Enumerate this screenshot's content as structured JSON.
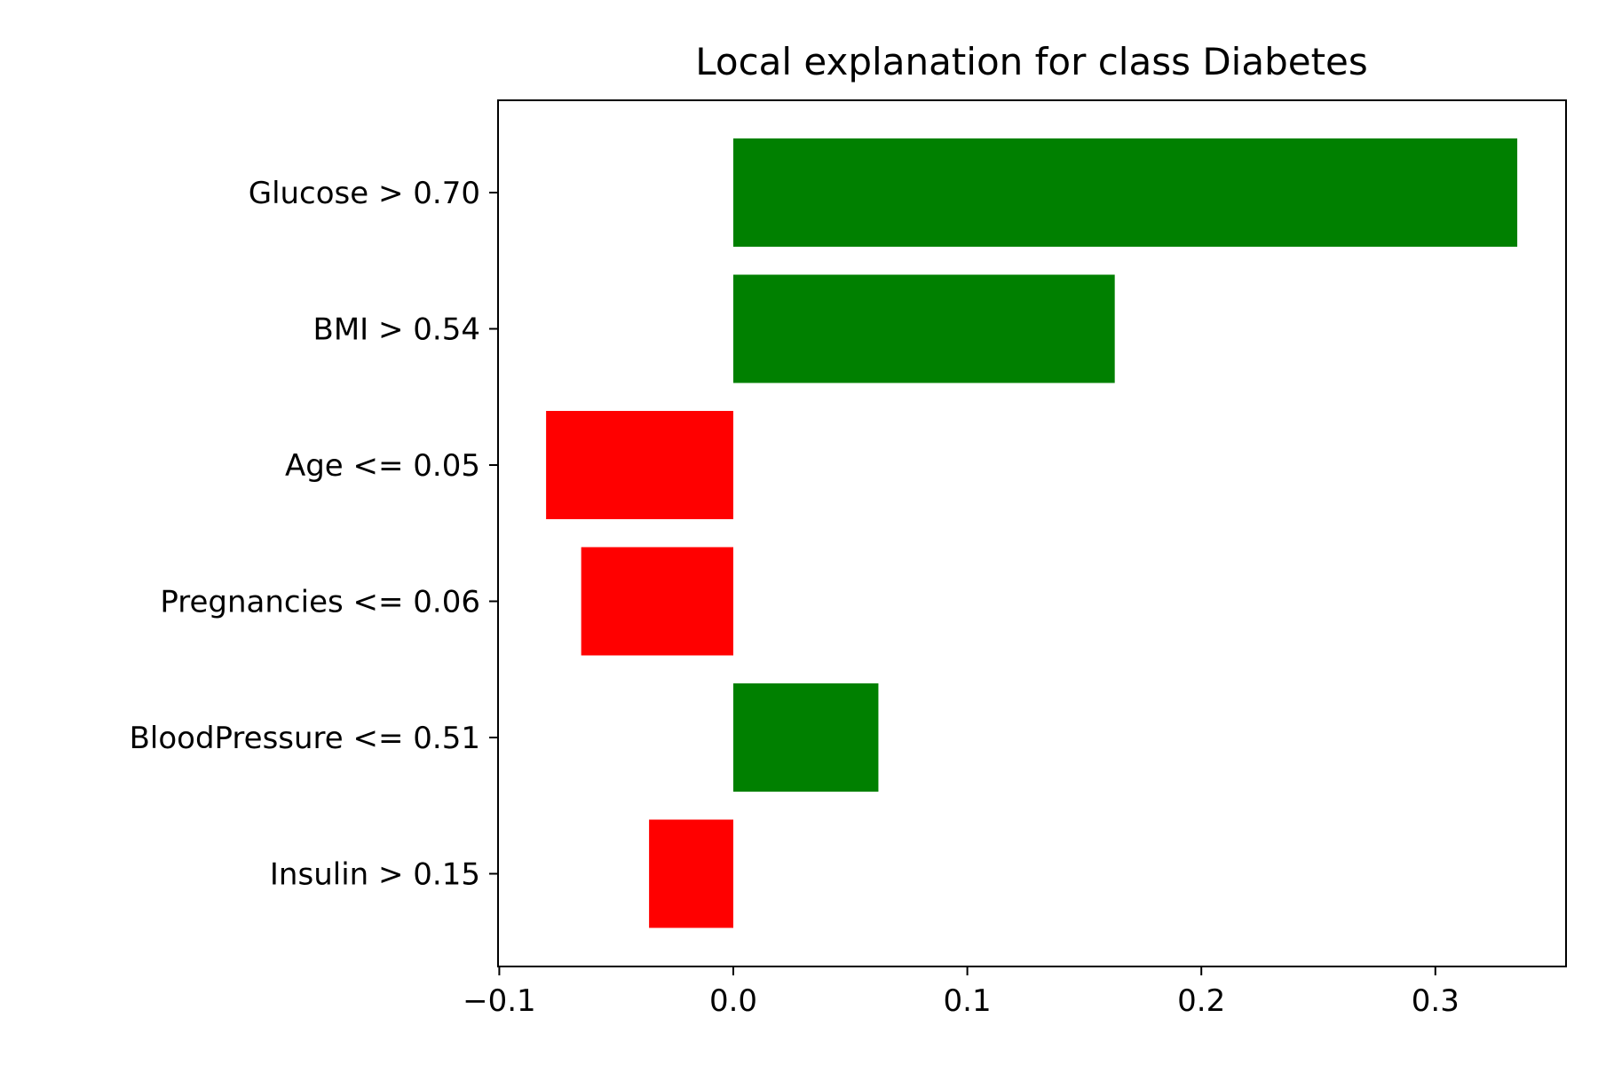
{
  "chart_data": {
    "type": "bar",
    "orientation": "horizontal",
    "title": "Local explanation for class Diabetes",
    "xlabel": "",
    "ylabel": "",
    "categories": [
      "Glucose > 0.70",
      "BMI > 0.54",
      "Age <= 0.05",
      "Pregnancies <= 0.06",
      "BloodPressure <= 0.51",
      "Insulin > 0.15"
    ],
    "values": [
      0.335,
      0.163,
      -0.08,
      -0.065,
      0.062,
      -0.036
    ],
    "xlim": [
      -0.1,
      0.36
    ],
    "xticks": [
      -0.1,
      0.0,
      0.1,
      0.2,
      0.3
    ],
    "xtick_labels": [
      "−0.1",
      "0.0",
      "0.1",
      "0.2",
      "0.3"
    ],
    "grid": false,
    "colors": {
      "positive": "#008000",
      "negative": "#ff0000"
    }
  }
}
